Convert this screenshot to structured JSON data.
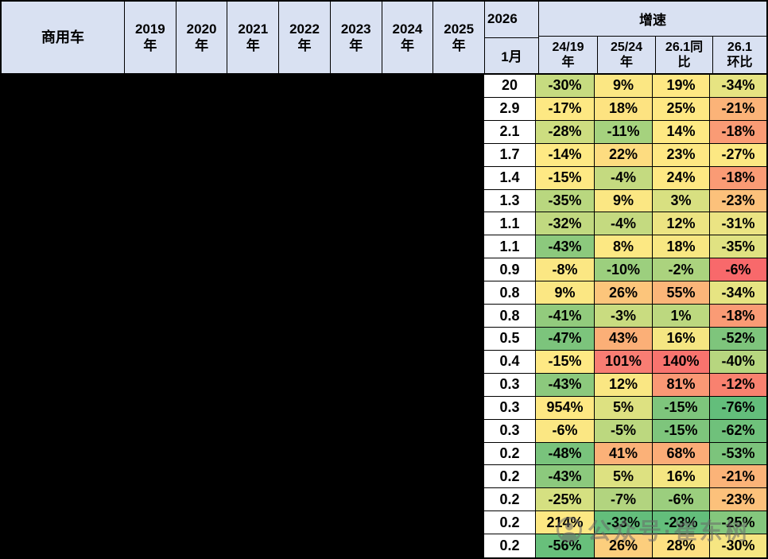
{
  "colors": {
    "header_bg": "#D9E1F2",
    "grid_border": "#000000",
    "redacted_overlay": "#000000",
    "scale_green": "#63BE7B",
    "scale_yellow": "#FFEB84",
    "scale_red": "#F8696B"
  },
  "table": {
    "vehicle_header": "商用车",
    "years": [
      "2019",
      "2020",
      "2021",
      "2022",
      "2023",
      "2024",
      "2025"
    ],
    "year_suffix": "年",
    "col_2026": "2026",
    "col_month": "1月",
    "growth_title": "增速",
    "growth_cols": [
      [
        "24/19",
        "年"
      ],
      [
        "25/24",
        "年"
      ],
      [
        "26.1同",
        "比"
      ],
      [
        "26.1",
        "环比"
      ]
    ],
    "rows": [
      {
        "jan": "20",
        "cells": [
          {
            "v": "-30%",
            "bg": "#C6DB80"
          },
          {
            "v": "9%",
            "bg": "#FBE783"
          },
          {
            "v": "19%",
            "bg": "#FEE883"
          },
          {
            "v": "-34%",
            "bg": "#E6E482"
          }
        ]
      },
      {
        "jan": "2.9",
        "cells": [
          {
            "v": "-17%",
            "bg": "#FDE883"
          },
          {
            "v": "18%",
            "bg": "#FDE381"
          },
          {
            "v": "25%",
            "bg": "#FEE883"
          },
          {
            "v": "-21%",
            "bg": "#FBB378"
          }
        ]
      },
      {
        "jan": "2.1",
        "cells": [
          {
            "v": "-28%",
            "bg": "#CDDD80"
          },
          {
            "v": "-11%",
            "bg": "#A5D27E"
          },
          {
            "v": "14%",
            "bg": "#FEE983"
          },
          {
            "v": "-18%",
            "bg": "#FA9B75"
          }
        ]
      },
      {
        "jan": "1.7",
        "cells": [
          {
            "v": "-14%",
            "bg": "#FEE984"
          },
          {
            "v": "22%",
            "bg": "#FDDC80"
          },
          {
            "v": "23%",
            "bg": "#FEE883"
          },
          {
            "v": "-27%",
            "bg": "#FCE883"
          }
        ]
      },
      {
        "jan": "1.4",
        "cells": [
          {
            "v": "-15%",
            "bg": "#FEE984"
          },
          {
            "v": "-4%",
            "bg": "#C4DA80"
          },
          {
            "v": "24%",
            "bg": "#FEE883"
          },
          {
            "v": "-18%",
            "bg": "#FA9B75"
          }
        ]
      },
      {
        "jan": "1.3",
        "cells": [
          {
            "v": "-35%",
            "bg": "#B9D77F"
          },
          {
            "v": "9%",
            "bg": "#FBE783"
          },
          {
            "v": "3%",
            "bg": "#D8E081"
          },
          {
            "v": "-23%",
            "bg": "#FCC17B"
          }
        ]
      },
      {
        "jan": "1.1",
        "cells": [
          {
            "v": "-32%",
            "bg": "#C1D980"
          },
          {
            "v": "-4%",
            "bg": "#C4DA80"
          },
          {
            "v": "12%",
            "bg": "#ECE482"
          },
          {
            "v": "-31%",
            "bg": "#EBE483"
          }
        ]
      },
      {
        "jan": "1.1",
        "cells": [
          {
            "v": "-43%",
            "bg": "#8CC97D"
          },
          {
            "v": "8%",
            "bg": "#FCE883"
          },
          {
            "v": "18%",
            "bg": "#F8E782"
          },
          {
            "v": "-35%",
            "bg": "#E0E282"
          }
        ]
      },
      {
        "jan": "0.9",
        "cells": [
          {
            "v": "-8%",
            "bg": "#FBE783"
          },
          {
            "v": "-10%",
            "bg": "#9CCF7E"
          },
          {
            "v": "-2%",
            "bg": "#ABD37E"
          },
          {
            "v": "-6%",
            "bg": "#F8696B"
          }
        ]
      },
      {
        "jan": "0.8",
        "cells": [
          {
            "v": "9%",
            "bg": "#FBE783"
          },
          {
            "v": "26%",
            "bg": "#FCC57B"
          },
          {
            "v": "55%",
            "bg": "#FBB579"
          },
          {
            "v": "-34%",
            "bg": "#E6E482"
          }
        ]
      },
      {
        "jan": "0.8",
        "cells": [
          {
            "v": "-41%",
            "bg": "#92CB7D"
          },
          {
            "v": "-3%",
            "bg": "#C9DC80"
          },
          {
            "v": "1%",
            "bg": "#BCD87F"
          },
          {
            "v": "-18%",
            "bg": "#FA9B75"
          }
        ]
      },
      {
        "jan": "0.5",
        "cells": [
          {
            "v": "-47%",
            "bg": "#7CC47C"
          },
          {
            "v": "43%",
            "bg": "#FBAF77"
          },
          {
            "v": "16%",
            "bg": "#F5E682"
          },
          {
            "v": "-52%",
            "bg": "#7EC57C"
          }
        ]
      },
      {
        "jan": "0.4",
        "cells": [
          {
            "v": "-15%",
            "bg": "#FEE984"
          },
          {
            "v": "101%",
            "bg": "#F87D73"
          },
          {
            "v": "140%",
            "bg": "#F8736E"
          },
          {
            "v": "-40%",
            "bg": "#B7D67F"
          }
        ]
      },
      {
        "jan": "0.3",
        "cells": [
          {
            "v": "-43%",
            "bg": "#8CC97D"
          },
          {
            "v": "12%",
            "bg": "#FAE783"
          },
          {
            "v": "81%",
            "bg": "#FA9875"
          },
          {
            "v": "-12%",
            "bg": "#F9816F"
          }
        ]
      },
      {
        "jan": "0.3",
        "cells": [
          {
            "v": "954%",
            "bg": "#FEE883"
          },
          {
            "v": "5%",
            "bg": "#DDE181"
          },
          {
            "v": "-15%",
            "bg": "#7EC57C"
          },
          {
            "v": "-76%",
            "bg": "#63BE7B"
          }
        ]
      },
      {
        "jan": "0.3",
        "cells": [
          {
            "v": "-6%",
            "bg": "#FBE783"
          },
          {
            "v": "-5%",
            "bg": "#BCD87F"
          },
          {
            "v": "-15%",
            "bg": "#7EC57C"
          },
          {
            "v": "-62%",
            "bg": "#6FC17B"
          }
        ]
      },
      {
        "jan": "0.2",
        "cells": [
          {
            "v": "-48%",
            "bg": "#79C37C"
          },
          {
            "v": "41%",
            "bg": "#FBB178"
          },
          {
            "v": "68%",
            "bg": "#FBAC77"
          },
          {
            "v": "-53%",
            "bg": "#7CC47C"
          }
        ]
      },
      {
        "jan": "0.2",
        "cells": [
          {
            "v": "-43%",
            "bg": "#8CC97D"
          },
          {
            "v": "5%",
            "bg": "#DDE181"
          },
          {
            "v": "16%",
            "bg": "#F5E682"
          },
          {
            "v": "-21%",
            "bg": "#FBB378"
          }
        ]
      },
      {
        "jan": "0.2",
        "cells": [
          {
            "v": "-25%",
            "bg": "#D5E081"
          },
          {
            "v": "-7%",
            "bg": "#B2D47F"
          },
          {
            "v": "-6%",
            "bg": "#9BCE7E"
          },
          {
            "v": "-23%",
            "bg": "#FCC17B"
          }
        ]
      },
      {
        "jan": "0.2",
        "cells": [
          {
            "v": "214%",
            "bg": "#FDE883"
          },
          {
            "v": "-33%",
            "bg": "#63BE7B"
          },
          {
            "v": "-23%",
            "bg": "#63BE7B"
          },
          {
            "v": "-25%",
            "bg": "#84C77D"
          }
        ]
      },
      {
        "jan": "0.2",
        "cells": [
          {
            "v": "-56%",
            "bg": "#68BF7B"
          },
          {
            "v": "26%",
            "bg": "#FCCE7D"
          },
          {
            "v": "28%",
            "bg": "#FEE082"
          },
          {
            "v": "-30%",
            "bg": "#F6E682"
          }
        ]
      }
    ]
  },
  "watermark": {
    "icon": "wechat-official-account-logo",
    "text": "公众号·崔东树"
  },
  "chart_data": {
    "type": "table",
    "title": "商用车",
    "columns": [
      "商用车",
      "2019年",
      "2020年",
      "2021年",
      "2022年",
      "2023年",
      "2024年",
      "2025年",
      "2026年1月",
      "增速 24/19年",
      "增速 25/24年",
      "增速 26.1同比",
      "增速 26.1环比"
    ],
    "rows_visible_values": [
      [
        "20",
        "-30%",
        "9%",
        "19%",
        "-34%"
      ],
      [
        "2.9",
        "-17%",
        "18%",
        "25%",
        "-21%"
      ],
      [
        "2.1",
        "-28%",
        "-11%",
        "14%",
        "-18%"
      ],
      [
        "1.7",
        "-14%",
        "22%",
        "23%",
        "-27%"
      ],
      [
        "1.4",
        "-15%",
        "-4%",
        "24%",
        "-18%"
      ],
      [
        "1.3",
        "-35%",
        "9%",
        "3%",
        "-23%"
      ],
      [
        "1.1",
        "-32%",
        "-4%",
        "12%",
        "-31%"
      ],
      [
        "1.1",
        "-43%",
        "8%",
        "18%",
        "-35%"
      ],
      [
        "0.9",
        "-8%",
        "-10%",
        "-2%",
        "-6%"
      ],
      [
        "0.8",
        "9%",
        "26%",
        "55%",
        "-34%"
      ],
      [
        "0.8",
        "-41%",
        "-3%",
        "1%",
        "-18%"
      ],
      [
        "0.5",
        "-47%",
        "43%",
        "16%",
        "-52%"
      ],
      [
        "0.4",
        "-15%",
        "101%",
        "140%",
        "-40%"
      ],
      [
        "0.3",
        "-43%",
        "12%",
        "81%",
        "-12%"
      ],
      [
        "0.3",
        "954%",
        "5%",
        "-15%",
        "-76%"
      ],
      [
        "0.3",
        "-6%",
        "-5%",
        "-15%",
        "-62%"
      ],
      [
        "0.2",
        "-48%",
        "41%",
        "68%",
        "-53%"
      ],
      [
        "0.2",
        "-43%",
        "5%",
        "16%",
        "-21%"
      ],
      [
        "0.2",
        "-25%",
        "-7%",
        "-6%",
        "-23%"
      ],
      [
        "0.2",
        "214%",
        "-33%",
        "-23%",
        "-25%"
      ],
      [
        "0.2",
        "-56%",
        "26%",
        "28%",
        "-30%"
      ]
    ]
  }
}
